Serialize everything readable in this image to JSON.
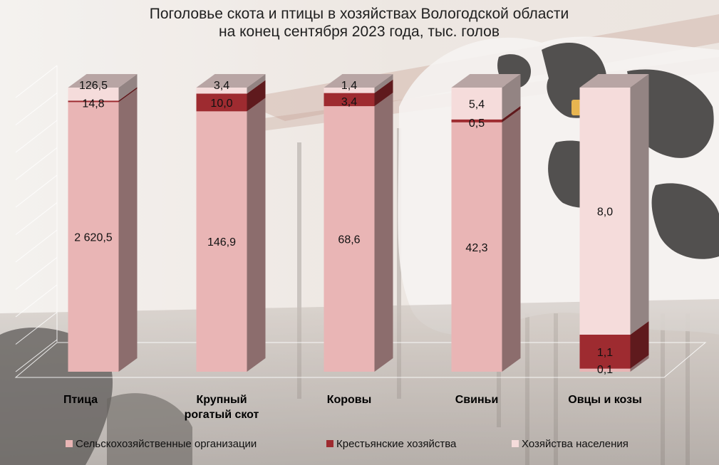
{
  "chart_data": {
    "type": "bar",
    "stacked": true,
    "title": [
      "Поголовье скота и птицы в хозяйствах Вологодской области",
      "на конец сентября 2023 года, тыс. голов"
    ],
    "categories": [
      [
        "Птица"
      ],
      [
        "Крупный",
        "рогатый скот"
      ],
      [
        "Коровы"
      ],
      [
        "Свиньи"
      ],
      [
        "Овцы и козы"
      ]
    ],
    "series": [
      {
        "name": "Сельскохозяйственные организации",
        "color": "#e9b5b5",
        "values": [
          2620.5,
          146.9,
          68.6,
          42.3,
          0.1
        ],
        "labels": [
          "2 620,5",
          "146,9",
          "68,6",
          "42,3",
          "0,1"
        ]
      },
      {
        "name": "Крестьянские хозяйства",
        "color": "#9e2b30",
        "values": [
          14.8,
          10.0,
          3.4,
          0.5,
          1.1
        ],
        "labels": [
          "14,8",
          "10,0",
          "3,4",
          "0,5",
          "1,1"
        ]
      },
      {
        "name": "Хозяйства населения",
        "color": "#f5dcdb",
        "values": [
          126.5,
          3.4,
          1.4,
          5.4,
          8.0
        ],
        "labels": [
          "126,5",
          "3,4",
          "1,4",
          "5,4",
          "8,0"
        ]
      }
    ],
    "normalized": "100% stacked",
    "grid": true,
    "legend": "bottom"
  }
}
